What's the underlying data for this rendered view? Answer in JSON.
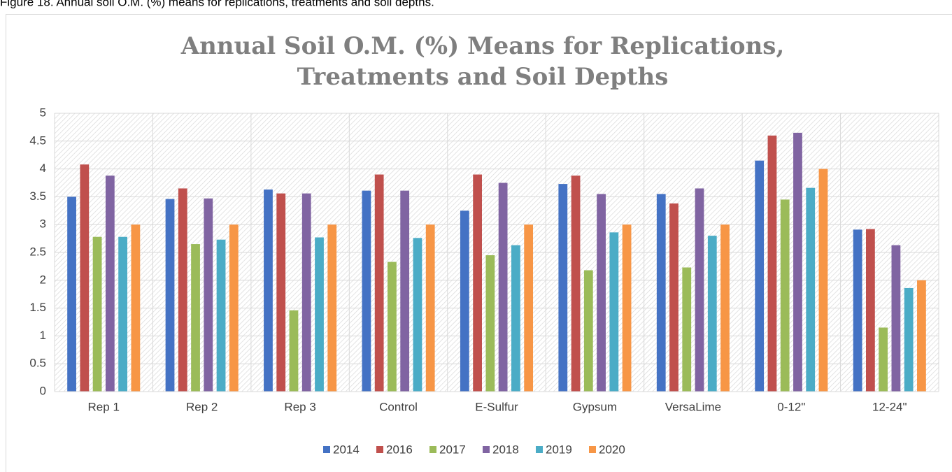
{
  "caption": "Figure 18. Annual soil O.M. (%) means for replications, treatments and soil depths.",
  "chart_data": {
    "type": "bar",
    "title": [
      "Annual Soil O.M. (%) Means for Replications,",
      "Treatments and Soil Depths"
    ],
    "categories": [
      "Rep 1",
      "Rep 2",
      "Rep 3",
      "Control",
      "E-Sulfur",
      "Gypsum",
      "VersaLime",
      "0-12\"",
      "12-24\""
    ],
    "series": [
      {
        "name": "2014",
        "color": "#4472c4",
        "values": [
          3.5,
          3.46,
          3.63,
          3.61,
          3.25,
          3.73,
          3.55,
          4.15,
          2.91
        ]
      },
      {
        "name": "2016",
        "color": "#c0504d",
        "values": [
          4.08,
          3.65,
          3.56,
          3.9,
          3.9,
          3.88,
          3.38,
          4.6,
          2.92
        ]
      },
      {
        "name": "2017",
        "color": "#9bbb59",
        "values": [
          2.78,
          2.65,
          1.46,
          2.33,
          2.45,
          2.18,
          2.23,
          3.45,
          1.15
        ]
      },
      {
        "name": "2018",
        "color": "#8064a2",
        "values": [
          3.88,
          3.47,
          3.56,
          3.61,
          3.75,
          3.55,
          3.65,
          4.65,
          2.63
        ]
      },
      {
        "name": "2019",
        "color": "#4bacc6",
        "values": [
          2.78,
          2.73,
          2.77,
          2.76,
          2.63,
          2.86,
          2.8,
          3.66,
          1.86
        ]
      },
      {
        "name": "2020",
        "color": "#f79646",
        "values": [
          3.0,
          3.0,
          3.0,
          3.0,
          3.0,
          3.0,
          3.0,
          4.0,
          2.0
        ]
      }
    ],
    "ylim": [
      0,
      5
    ],
    "yticks": [
      0,
      0.5,
      1,
      1.5,
      2,
      2.5,
      3,
      3.5,
      4,
      4.5,
      5
    ],
    "grid": true,
    "legend": "bottom"
  }
}
